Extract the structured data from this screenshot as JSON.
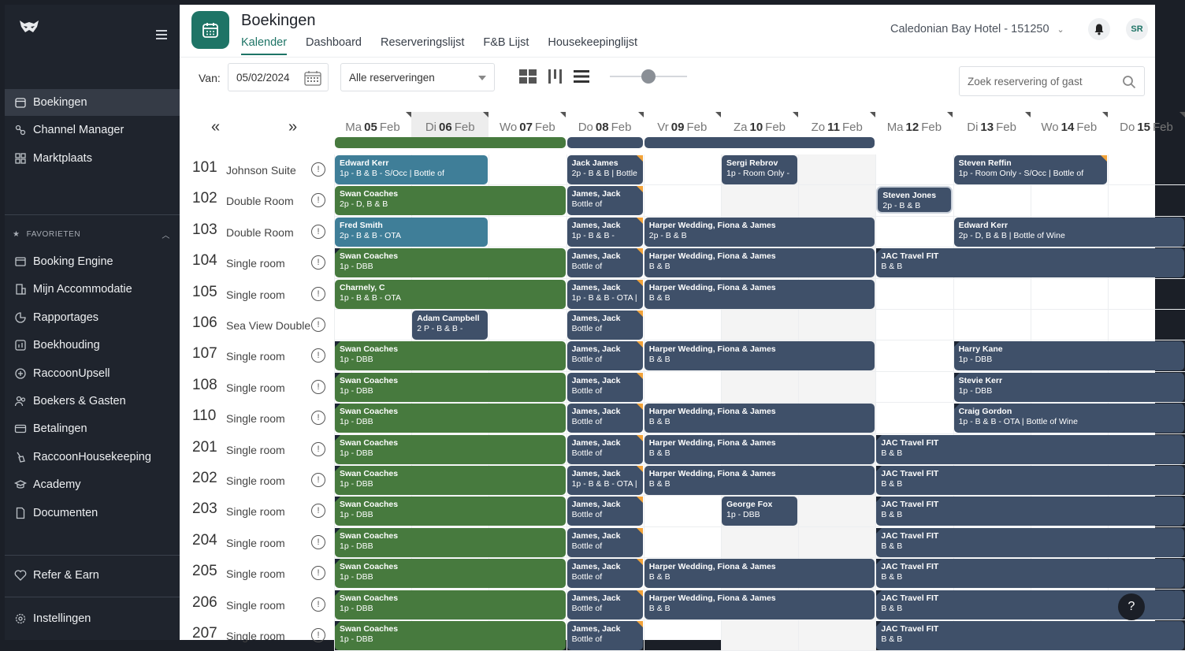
{
  "sidebar": {
    "main_items": [
      {
        "label": "Boekingen",
        "icon": "calendar-icon",
        "active": true
      },
      {
        "label": "Channel Manager",
        "icon": "channel-icon"
      },
      {
        "label": "Marktplaats",
        "icon": "grid-icon"
      }
    ],
    "favorites_label": "FAVORIETEN",
    "favorite_items": [
      {
        "label": "Booking Engine",
        "icon": "booking-engine-icon"
      },
      {
        "label": "Mijn Accommodatie",
        "icon": "building-icon"
      },
      {
        "label": "Rapportages",
        "icon": "report-icon"
      },
      {
        "label": "Boekhouding",
        "icon": "chart-icon"
      },
      {
        "label": "RaccoonUpsell",
        "icon": "plus-circle-icon"
      },
      {
        "label": "Boekers & Gasten",
        "icon": "users-icon"
      },
      {
        "label": "Betalingen",
        "icon": "card-icon"
      },
      {
        "label": "RaccoonHousekeeping",
        "icon": "broom-icon"
      },
      {
        "label": "Academy",
        "icon": "academy-icon"
      },
      {
        "label": "Documenten",
        "icon": "document-icon"
      }
    ],
    "refer_label": "Refer & Earn",
    "settings_label": "Instellingen"
  },
  "header": {
    "title": "Boekingen",
    "tabs": [
      "Kalender",
      "Dashboard",
      "Reserveringslijst",
      "F&B Lijst",
      "Housekeepinglijst"
    ],
    "hotel": "Caledonian Bay Hotel - 151250",
    "avatar_initials": "SR"
  },
  "toolbar": {
    "van_label": "Van:",
    "date_value": "05/02/2024",
    "filter_value": "Alle reserveringen",
    "search_placeholder": "Zoek reservering of gast",
    "prev_label": "«",
    "next_label": "»"
  },
  "days": [
    {
      "dow": "Ma",
      "num": "05",
      "mon": "Feb"
    },
    {
      "dow": "Di",
      "num": "06",
      "mon": "Feb"
    },
    {
      "dow": "Wo",
      "num": "07",
      "mon": "Feb"
    },
    {
      "dow": "Do",
      "num": "08",
      "mon": "Feb"
    },
    {
      "dow": "Vr",
      "num": "09",
      "mon": "Feb"
    },
    {
      "dow": "Za",
      "num": "10",
      "mon": "Feb"
    },
    {
      "dow": "Zo",
      "num": "11",
      "mon": "Feb"
    },
    {
      "dow": "Ma",
      "num": "12",
      "mon": "Feb"
    },
    {
      "dow": "Di",
      "num": "13",
      "mon": "Feb"
    },
    {
      "dow": "Wo",
      "num": "14",
      "mon": "Feb"
    },
    {
      "dow": "Do",
      "num": "15",
      "mon": "Feb"
    }
  ],
  "rooms": [
    {
      "no": "101",
      "type": "Johnson Suite",
      "bookings": [
        {
          "name": "Edward Kerr",
          "detail": "1p - B & B - S/Occ | Bottle of",
          "start": 0,
          "span": 2,
          "color": "t"
        },
        {
          "name": "Jack James",
          "detail": "2p - B & B | Bottle",
          "start": 3,
          "span": 1,
          "color": "s",
          "mark": true
        },
        {
          "name": "Sergi Rebrov",
          "detail": "1p - Room Only -",
          "start": 5,
          "span": 1,
          "color": "s"
        },
        {
          "name": "Steven Reffin",
          "detail": "1p - Room Only - S/Occ | Bottle of",
          "start": 8,
          "span": 2,
          "color": "s",
          "mark": true
        }
      ]
    },
    {
      "no": "102",
      "type": "Double Room",
      "bookings": [
        {
          "name": "Swan Coaches",
          "detail": "2p - D, B & B",
          "start": 0,
          "span": 3,
          "color": "g"
        },
        {
          "name": "James, Jack",
          "detail": "Bottle of",
          "start": 3,
          "span": 1,
          "color": "s",
          "mark": true
        },
        {
          "name": "Steven Jones",
          "detail": "2p - B & B",
          "start": 7,
          "span": 1,
          "color": "s",
          "inset": true
        }
      ]
    },
    {
      "no": "103",
      "type": "Double Room",
      "bookings": [
        {
          "name": "Fred Smith",
          "detail": "2p - B & B - OTA",
          "start": 0,
          "span": 2,
          "color": "t"
        },
        {
          "name": "James, Jack",
          "detail": "1p - B & B -",
          "start": 3,
          "span": 1,
          "color": "s",
          "mark": true
        },
        {
          "name": "Harper Wedding, Fiona & James",
          "detail": "2p - B & B",
          "start": 4,
          "span": 3,
          "color": "s"
        },
        {
          "name": "Edward Kerr",
          "detail": "2p - D, B & B | Bottle of Wine",
          "start": 8,
          "span": 3,
          "color": "s"
        }
      ]
    },
    {
      "no": "104",
      "type": "Single room",
      "bookings": [
        {
          "name": "Swan Coaches",
          "detail": "1p - DBB",
          "start": 0,
          "span": 3,
          "color": "g",
          "dk": true
        },
        {
          "name": "James, Jack",
          "detail": "Bottle of",
          "start": 3,
          "span": 1,
          "color": "s",
          "mark": true
        },
        {
          "name": "Harper Wedding, Fiona & James",
          "detail": "B & B",
          "start": 4,
          "span": 3,
          "color": "s"
        },
        {
          "name": "JAC Travel FIT",
          "detail": "B & B",
          "start": 7,
          "span": 4,
          "color": "s",
          "dk": true
        }
      ]
    },
    {
      "no": "105",
      "type": "Single room",
      "bookings": [
        {
          "name": "Charnely, C",
          "detail": "1p - B & B - OTA",
          "start": 0,
          "span": 3,
          "color": "g"
        },
        {
          "name": "James, Jack",
          "detail": "1p - B & B - OTA |",
          "start": 3,
          "span": 1,
          "color": "s",
          "mark": true
        },
        {
          "name": "Harper Wedding, Fiona & James",
          "detail": "B & B",
          "start": 4,
          "span": 3,
          "color": "s"
        }
      ]
    },
    {
      "no": "106",
      "type": "Sea View Double",
      "bookings": [
        {
          "name": "Adam Campbell",
          "detail": "2 P - B & B -",
          "start": 1,
          "span": 1,
          "color": "s"
        },
        {
          "name": "James, Jack",
          "detail": "Bottle of",
          "start": 3,
          "span": 1,
          "color": "s",
          "mark": true
        }
      ]
    },
    {
      "no": "107",
      "type": "Single room",
      "bookings": [
        {
          "name": "Swan Coaches",
          "detail": "1p - DBB",
          "start": 0,
          "span": 3,
          "color": "g",
          "dk": true
        },
        {
          "name": "James, Jack",
          "detail": "Bottle of",
          "start": 3,
          "span": 1,
          "color": "s",
          "mark": true
        },
        {
          "name": "Harper Wedding, Fiona & James",
          "detail": "B & B",
          "start": 4,
          "span": 3,
          "color": "s"
        },
        {
          "name": "Harry Kane",
          "detail": "1p - DBB",
          "start": 8,
          "span": 3,
          "color": "s",
          "dk": true
        }
      ]
    },
    {
      "no": "108",
      "type": "Single room",
      "bookings": [
        {
          "name": "Swan Coaches",
          "detail": "1p - DBB",
          "start": 0,
          "span": 3,
          "color": "g",
          "dk": true
        },
        {
          "name": "James, Jack",
          "detail": "Bottle of",
          "start": 3,
          "span": 1,
          "color": "s",
          "mark": true
        },
        {
          "name": "Stevie Kerr",
          "detail": "1p - DBB",
          "start": 8,
          "span": 3,
          "color": "s",
          "dk": true
        }
      ]
    },
    {
      "no": "110",
      "type": "Single room",
      "bookings": [
        {
          "name": "Swan Coaches",
          "detail": "1p - DBB",
          "start": 0,
          "span": 3,
          "color": "g",
          "dk": true
        },
        {
          "name": "James, Jack",
          "detail": "Bottle of",
          "start": 3,
          "span": 1,
          "color": "s",
          "mark": true
        },
        {
          "name": "Harper Wedding, Fiona & James",
          "detail": "B & B",
          "start": 4,
          "span": 3,
          "color": "s"
        },
        {
          "name": "Craig Gordon",
          "detail": "1p - B & B - OTA | Bottle of Wine",
          "start": 8,
          "span": 3,
          "color": "s",
          "dk": true
        }
      ]
    },
    {
      "no": "201",
      "type": "Single room",
      "bookings": [
        {
          "name": "Swan Coaches",
          "detail": "1p - DBB",
          "start": 0,
          "span": 3,
          "color": "g",
          "dk": true
        },
        {
          "name": "James, Jack",
          "detail": "Bottle of",
          "start": 3,
          "span": 1,
          "color": "s",
          "mark": true
        },
        {
          "name": "Harper Wedding, Fiona & James",
          "detail": "B & B",
          "start": 4,
          "span": 3,
          "color": "s"
        },
        {
          "name": "JAC Travel FIT",
          "detail": "B & B",
          "start": 7,
          "span": 4,
          "color": "s",
          "dk": true
        }
      ]
    },
    {
      "no": "202",
      "type": "Single room",
      "bookings": [
        {
          "name": "Swan Coaches",
          "detail": "1p - DBB",
          "start": 0,
          "span": 3,
          "color": "g",
          "dk": true
        },
        {
          "name": "James, Jack",
          "detail": "1p - B & B - OTA |",
          "start": 3,
          "span": 1,
          "color": "s",
          "mark": true
        },
        {
          "name": "Harper Wedding, Fiona & James",
          "detail": "B & B",
          "start": 4,
          "span": 3,
          "color": "s"
        },
        {
          "name": "JAC Travel FIT",
          "detail": "B & B",
          "start": 7,
          "span": 4,
          "color": "s",
          "dk": true
        }
      ]
    },
    {
      "no": "203",
      "type": "Single room",
      "bookings": [
        {
          "name": "Swan Coaches",
          "detail": "1p - DBB",
          "start": 0,
          "span": 3,
          "color": "g",
          "dk": true
        },
        {
          "name": "James, Jack",
          "detail": "Bottle of",
          "start": 3,
          "span": 1,
          "color": "s",
          "mark": true
        },
        {
          "name": "George Fox",
          "detail": "1p - DBB",
          "start": 5,
          "span": 1,
          "color": "s"
        },
        {
          "name": "JAC Travel FIT",
          "detail": "B & B",
          "start": 7,
          "span": 4,
          "color": "s",
          "dk": true
        }
      ]
    },
    {
      "no": "204",
      "type": "Single room",
      "bookings": [
        {
          "name": "Swan Coaches",
          "detail": "1p - DBB",
          "start": 0,
          "span": 3,
          "color": "g",
          "dk": true
        },
        {
          "name": "James, Jack",
          "detail": "Bottle of",
          "start": 3,
          "span": 1,
          "color": "s",
          "mark": true
        },
        {
          "name": "JAC Travel FIT",
          "detail": "B & B",
          "start": 7,
          "span": 4,
          "color": "s",
          "dk": true
        }
      ]
    },
    {
      "no": "205",
      "type": "Single room",
      "bookings": [
        {
          "name": "Swan Coaches",
          "detail": "1p - DBB",
          "start": 0,
          "span": 3,
          "color": "g",
          "dk": true
        },
        {
          "name": "James, Jack",
          "detail": "Bottle of",
          "start": 3,
          "span": 1,
          "color": "s",
          "mark": true
        },
        {
          "name": "Harper Wedding, Fiona & James",
          "detail": "B & B",
          "start": 4,
          "span": 3,
          "color": "s"
        },
        {
          "name": "JAC Travel FIT",
          "detail": "B & B",
          "start": 7,
          "span": 4,
          "color": "s",
          "dk": true
        }
      ]
    },
    {
      "no": "206",
      "type": "Single room",
      "bookings": [
        {
          "name": "Swan Coaches",
          "detail": "1p - DBB",
          "start": 0,
          "span": 3,
          "color": "g",
          "dk": true
        },
        {
          "name": "James, Jack",
          "detail": "Bottle of",
          "start": 3,
          "span": 1,
          "color": "s",
          "mark": true
        },
        {
          "name": "Harper Wedding, Fiona & James",
          "detail": "B & B",
          "start": 4,
          "span": 3,
          "color": "s"
        },
        {
          "name": "JAC Travel FIT",
          "detail": "B & B",
          "start": 7,
          "span": 4,
          "color": "s",
          "dk": true
        }
      ]
    },
    {
      "no": "207",
      "type": "Single room",
      "bookings": [
        {
          "name": "Swan Coaches",
          "detail": "1p - DBB",
          "start": 0,
          "span": 3,
          "color": "g",
          "dk": true
        },
        {
          "name": "James, Jack",
          "detail": "Bottle of",
          "start": 3,
          "span": 1,
          "color": "s",
          "mark": true
        },
        {
          "name": "JAC Travel FIT",
          "detail": "B & B",
          "start": 7,
          "span": 4,
          "color": "s",
          "dk": true
        }
      ]
    }
  ],
  "info_glyph": "!",
  "help_label": "?",
  "colors": {
    "green": "#477a3e",
    "slate": "#3f5069",
    "teal": "#3f7e98",
    "accent": "#1e7466",
    "sidebar": "#1f242d"
  }
}
